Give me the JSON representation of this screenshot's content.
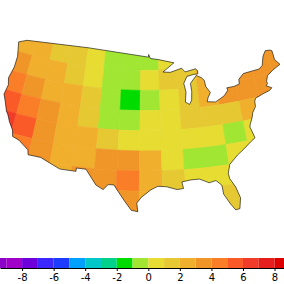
{
  "chart_data": {
    "type": "map",
    "lon_edges": [
      -125,
      -121,
      -117,
      -113,
      -109,
      -105,
      -101,
      -97,
      -93,
      -89,
      -85,
      -81,
      -77,
      -73,
      -69,
      -65
    ],
    "lat_edges": [
      50,
      47,
      44,
      41,
      38,
      35,
      32,
      29,
      26,
      23
    ],
    "cells": [
      [
        2.5,
        2,
        1.5,
        1,
        0.5,
        -0.5,
        -1,
        -0.5,
        0,
        1,
        1.5,
        2,
        3,
        3.5,
        3
      ],
      [
        3,
        2.5,
        2,
        1.5,
        0.5,
        -0.5,
        -1,
        0,
        1,
        1.5,
        2,
        2.5,
        3,
        3.5,
        3
      ],
      [
        4,
        3.5,
        2.5,
        2,
        1,
        -0.5,
        -1.5,
        -0.5,
        0.5,
        1.5,
        2,
        3,
        3.5,
        3.5,
        3
      ],
      [
        5,
        4,
        3,
        2.5,
        1.5,
        -0.5,
        -1,
        0,
        0.5,
        1,
        1.5,
        1.5,
        2,
        2,
        2
      ],
      [
        6,
        5,
        3.5,
        2.5,
        2,
        1,
        0.5,
        0.5,
        0.5,
        0,
        0,
        -0.5,
        0,
        1,
        1
      ],
      [
        5,
        4.5,
        3,
        2.5,
        2.5,
        3,
        3.5,
        2,
        0.5,
        -1,
        -0.5,
        0,
        0.5,
        0.5,
        0.5
      ],
      [
        4,
        4,
        3,
        2.5,
        3,
        3.5,
        4,
        2.5,
        1,
        0.5,
        0,
        0.5,
        0.5,
        0.5,
        0.5
      ],
      [
        3,
        3,
        3,
        3,
        3,
        3,
        3,
        2.5,
        2,
        1.5,
        1,
        1.5,
        1.5,
        1.5,
        1.5
      ],
      [
        2,
        2,
        2,
        2,
        2,
        2,
        2.5,
        2,
        1.5,
        1.5,
        1.5,
        1.5,
        1.5,
        1.5,
        1.5
      ]
    ],
    "color_bar": {
      "range": [
        -9.4,
        8.6
      ],
      "ticks": [
        -8,
        -6,
        -4,
        -2,
        0,
        2,
        4,
        6,
        8
      ],
      "levels": [
        -10,
        -9,
        -8,
        -7,
        -6,
        -5,
        -4,
        -3,
        -2,
        -1,
        0,
        1,
        2,
        3,
        4,
        5,
        6,
        7,
        8,
        9,
        10
      ],
      "colors": [
        "#8c00c8",
        "#a000c8",
        "#6e00dc",
        "#3c28ff",
        "#1e3cff",
        "#00a0ff",
        "#00c8c8",
        "#00d28c",
        "#00dc00",
        "#a0e632",
        "#e6dc32",
        "#e6c832",
        "#f0af2d",
        "#f09628",
        "#fa7d28",
        "#fa5a28",
        "#f03c28",
        "#e61e1e",
        "#dc0000",
        "#b40000"
      ]
    }
  }
}
